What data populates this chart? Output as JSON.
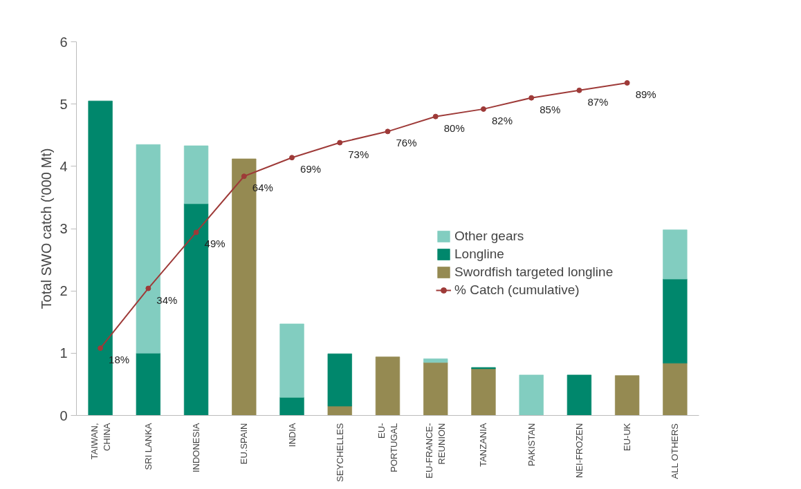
{
  "chart_data": {
    "type": "bar",
    "stacked": true,
    "ylabel": "Total SWO catch ('000 Mt)",
    "categories": [
      "TAIWAN, CHINA",
      "SRI LANKA",
      "INDONESIA",
      "EU.SPAIN",
      "INDIA",
      "SEYCHELLES",
      "EU-PORTUGAL",
      "EU-FRANCE-REUNION",
      "TANZANIA",
      "PAKISTAN",
      "NEI-FROZEN",
      "EU-UK",
      "ALL OTHERS"
    ],
    "series": [
      {
        "name": "Swordfish targeted longline",
        "color": "#958a52",
        "values": [
          0,
          0,
          0,
          4.12,
          0,
          0.15,
          0.94,
          0.85,
          0.75,
          0,
          0,
          0.64,
          0.84
        ]
      },
      {
        "name": "Longline",
        "color": "#00876c",
        "values": [
          5.05,
          1.0,
          3.4,
          0,
          0.29,
          0.84,
          0,
          0,
          0.02,
          0,
          0.65,
          0,
          1.35
        ]
      },
      {
        "name": "Other gears",
        "color": "#82cdc0",
        "values": [
          0,
          3.35,
          0.93,
          0,
          1.18,
          0,
          0,
          0.06,
          0,
          0.65,
          0,
          0,
          0.79
        ]
      },
      {
        "name": "% Catch (cumulative)",
        "type": "line",
        "axis": "y2",
        "color": "#9e3a38",
        "marker": "circle",
        "values": [
          18,
          34,
          49,
          64,
          69,
          73,
          76,
          80,
          82,
          85,
          87,
          89,
          null
        ],
        "value_labels": [
          "18%",
          "34%",
          "49%",
          "64%",
          "69%",
          "73%",
          "76%",
          "80%",
          "82%",
          "85%",
          "87%",
          "89%",
          null
        ]
      }
    ],
    "ylim": [
      0,
      6
    ],
    "yticks": [
      0,
      1,
      2,
      3,
      4,
      5,
      6
    ],
    "y2lim": [
      0,
      100
    ],
    "grid": false,
    "legend": "right"
  }
}
